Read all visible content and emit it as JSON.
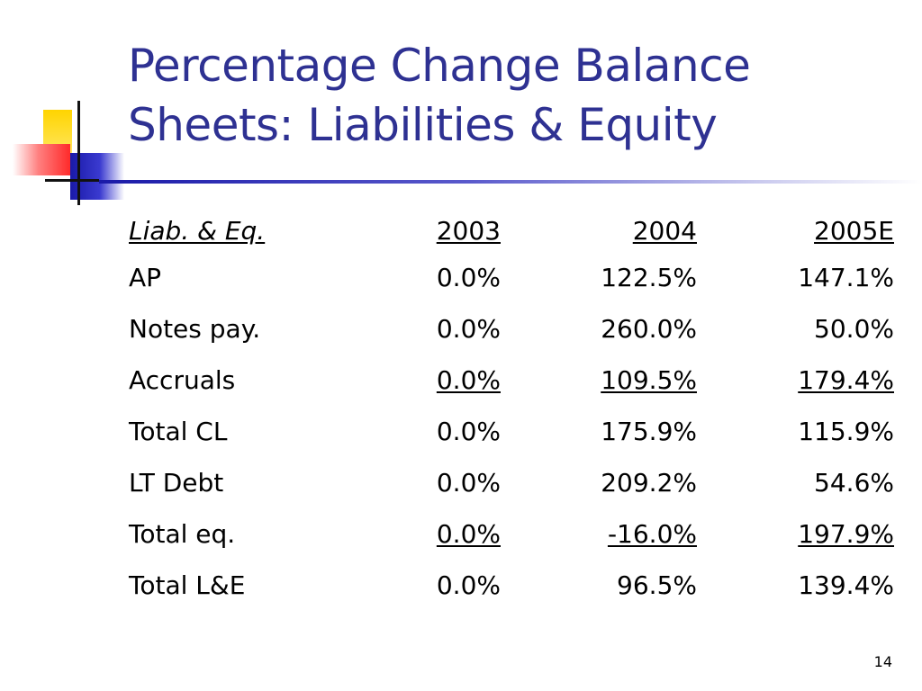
{
  "slide": {
    "title_line1": "Percentage Change Balance",
    "title_line2": "Sheets: Liabilities & Equity",
    "page_number": "14"
  },
  "table": {
    "header": {
      "label": "Liab. & Eq.",
      "col1": "2003",
      "col2": "2004",
      "col3": "2005E"
    },
    "rows": [
      {
        "label": "AP",
        "v2003": "0.0%",
        "v2004": "122.5%",
        "v2005": "147.1%"
      },
      {
        "label": "Notes pay.",
        "v2003": "0.0%",
        "v2004": "260.0%",
        "v2005": "50.0%"
      },
      {
        "label": "Accruals",
        "v2003": "0.0%",
        "v2004": "109.5%",
        "v2005": "179.4%"
      },
      {
        "label": "Total CL",
        "v2003": "0.0%",
        "v2004": "175.9%",
        "v2005": "115.9%"
      },
      {
        "label": "LT Debt",
        "v2003": "0.0%",
        "v2004": "209.2%",
        "v2005": "54.6%"
      },
      {
        "label": "Total eq.",
        "v2003": "0.0%",
        "v2004": "-16.0%",
        "v2005": "197.9%"
      },
      {
        "label": "Total L&E",
        "v2003": "0.0%",
        "v2004": "96.5%",
        "v2005": "139.4%"
      }
    ]
  },
  "colors": {
    "title": "#2e3192",
    "accent_blue": "#1a1aa8",
    "accent_yellow": "#ffd400",
    "accent_red": "#ff2a2a"
  }
}
